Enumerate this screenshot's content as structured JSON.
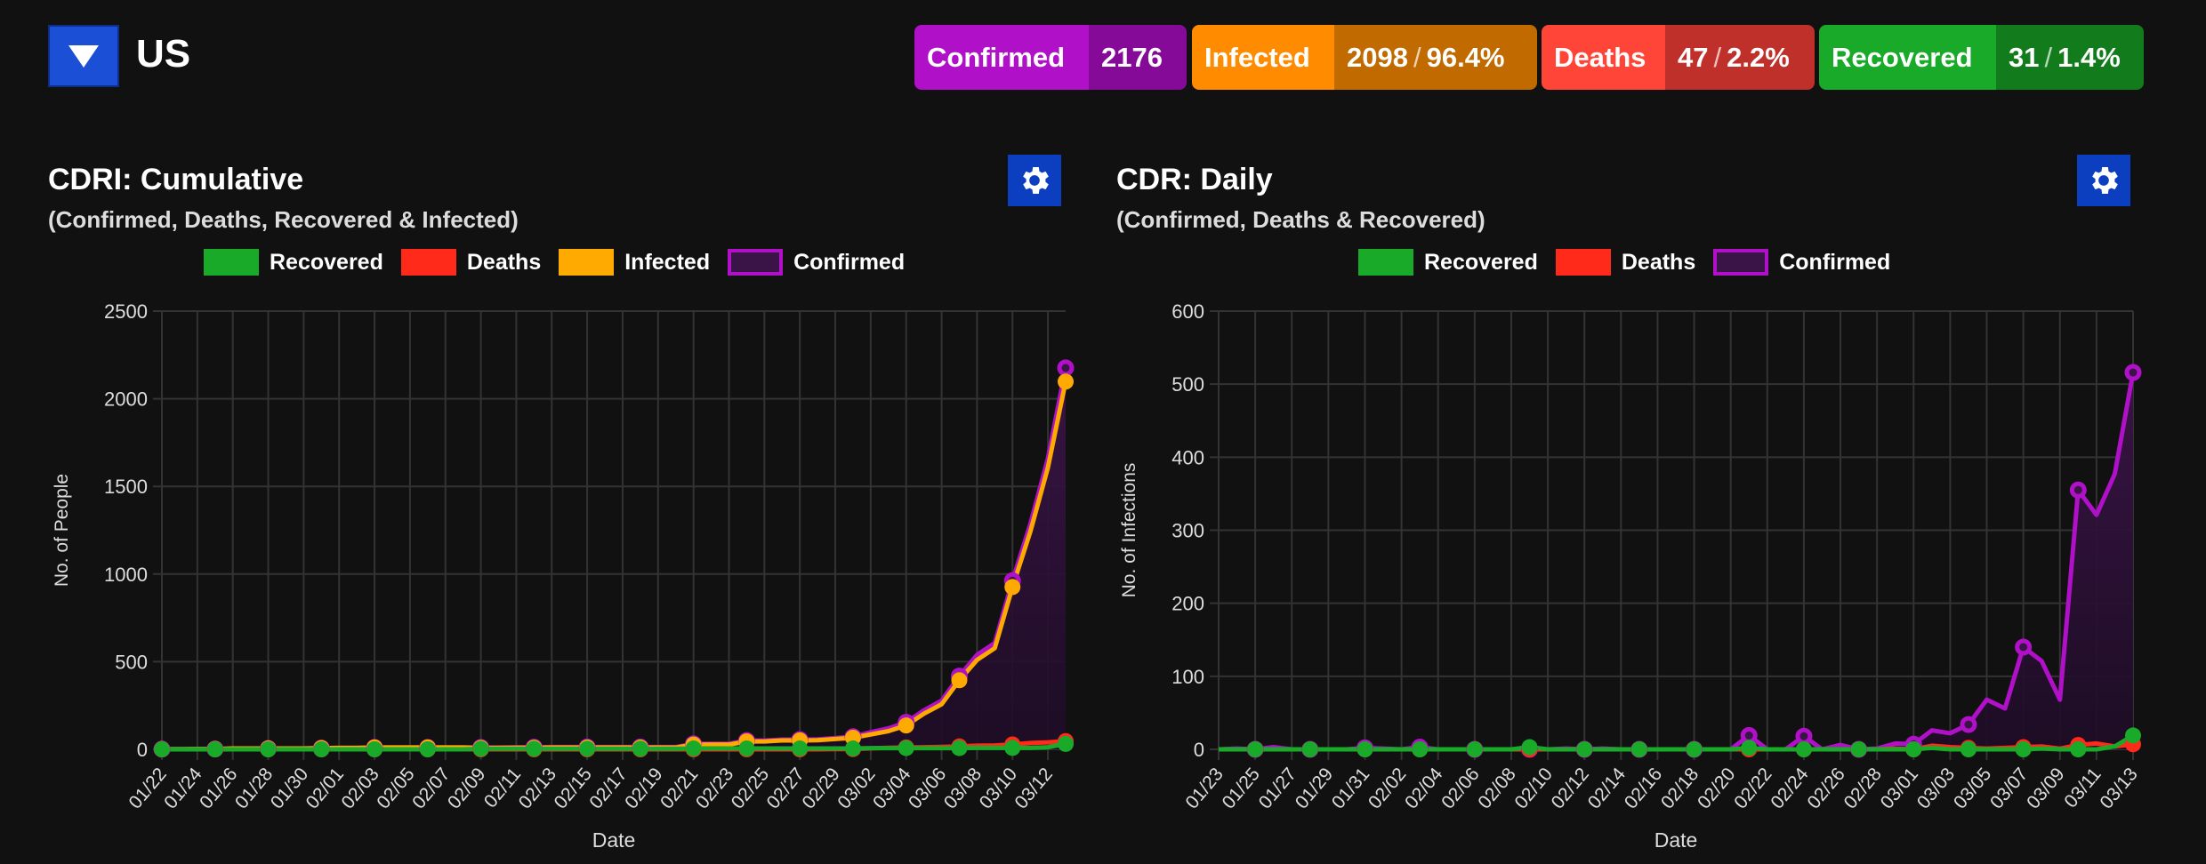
{
  "header": {
    "country": "US",
    "dropdown_icon": "triangle-down-icon"
  },
  "badges": [
    {
      "label": "Confirmed",
      "value": "2176",
      "pct": "",
      "color": "#b010c8",
      "dark": "#850a98"
    },
    {
      "label": "Infected",
      "value": "2098",
      "pct": "96.4%",
      "color": "#ff8c00",
      "dark": "#c06a00"
    },
    {
      "label": "Deaths",
      "value": "47",
      "pct": "2.2%",
      "color": "#ff4538",
      "dark": "#c0302a"
    },
    {
      "label": "Recovered",
      "value": "31",
      "pct": "1.4%",
      "color": "#18aa28",
      "dark": "#127c1c"
    }
  ],
  "slash": "/",
  "colors": {
    "confirmed": "#b010c8",
    "infected": "#ffaa00",
    "deaths": "#ff2a1a",
    "recovered": "#18aa28",
    "grid": "#333333",
    "gear_button": "#0c3fbf"
  },
  "panels": [
    {
      "title": "CDRI: Cumulative",
      "subtitle": "(Confirmed, Deaths, Recovered & Infected)",
      "settings_icon": "gear-icon"
    },
    {
      "title": "CDR: Daily",
      "subtitle": "(Confirmed, Deaths & Recovered)",
      "settings_icon": "gear-icon"
    }
  ],
  "chart_data": [
    {
      "type": "line",
      "title": "CDRI: Cumulative",
      "xlabel": "Date",
      "ylabel": "No. of People",
      "ylim": [
        0,
        2500
      ],
      "yticks": [
        0,
        500,
        1000,
        1500,
        2000,
        2500
      ],
      "grid": true,
      "legend": "top",
      "legend_items": [
        "Recovered",
        "Deaths",
        "Infected",
        "Confirmed"
      ],
      "x": [
        "01/22",
        "01/23",
        "01/24",
        "01/25",
        "01/26",
        "01/27",
        "01/28",
        "01/29",
        "01/30",
        "01/31",
        "02/01",
        "02/02",
        "02/03",
        "02/04",
        "02/05",
        "02/06",
        "02/07",
        "02/08",
        "02/09",
        "02/10",
        "02/11",
        "02/12",
        "02/13",
        "02/14",
        "02/15",
        "02/16",
        "02/17",
        "02/18",
        "02/19",
        "02/20",
        "02/21",
        "02/22",
        "02/23",
        "02/24",
        "02/25",
        "02/26",
        "02/27",
        "02/28",
        "02/29",
        "03/01",
        "03/02",
        "03/03",
        "03/04",
        "03/05",
        "03/06",
        "03/07",
        "03/08",
        "03/09",
        "03/10",
        "03/11",
        "03/12",
        "03/13"
      ],
      "series": [
        {
          "name": "Confirmed",
          "color": "#b010c8",
          "fill": true,
          "values": [
            1,
            1,
            2,
            2,
            5,
            5,
            5,
            5,
            5,
            7,
            8,
            8,
            11,
            11,
            11,
            11,
            11,
            11,
            11,
            11,
            12,
            12,
            13,
            13,
            13,
            13,
            13,
            13,
            13,
            13,
            32,
            32,
            32,
            50,
            50,
            56,
            56,
            57,
            65,
            72,
            98,
            120,
            154,
            222,
            278,
            418,
            539,
            607,
            962,
            1283,
            1660,
            2176
          ]
        },
        {
          "name": "Infected",
          "color": "#ffaa00",
          "values": [
            1,
            1,
            2,
            2,
            5,
            5,
            5,
            5,
            5,
            7,
            8,
            8,
            11,
            11,
            11,
            11,
            11,
            11,
            8,
            8,
            9,
            9,
            10,
            10,
            10,
            10,
            10,
            10,
            10,
            10,
            27,
            27,
            27,
            45,
            45,
            51,
            51,
            52,
            59,
            66,
            85,
            104,
            136,
            203,
            257,
            394,
            510,
            577,
            926,
            1239,
            1608,
            2098
          ]
        },
        {
          "name": "Deaths",
          "color": "#ff2a1a",
          "values": [
            0,
            0,
            0,
            0,
            0,
            0,
            0,
            0,
            0,
            0,
            0,
            0,
            0,
            0,
            0,
            0,
            0,
            0,
            0,
            0,
            0,
            0,
            0,
            0,
            0,
            0,
            0,
            0,
            0,
            0,
            0,
            0,
            0,
            0,
            0,
            0,
            0,
            0,
            1,
            1,
            6,
            9,
            11,
            12,
            14,
            17,
            21,
            22,
            28,
            36,
            40,
            47
          ]
        },
        {
          "name": "Recovered",
          "color": "#18aa28",
          "values": [
            0,
            0,
            0,
            0,
            0,
            0,
            0,
            0,
            0,
            0,
            0,
            0,
            0,
            0,
            0,
            0,
            0,
            0,
            3,
            3,
            3,
            3,
            3,
            3,
            3,
            3,
            3,
            3,
            3,
            3,
            5,
            5,
            5,
            5,
            5,
            5,
            5,
            5,
            5,
            5,
            7,
            7,
            7,
            7,
            7,
            7,
            8,
            8,
            8,
            8,
            12,
            31
          ]
        }
      ]
    },
    {
      "type": "line",
      "title": "CDR: Daily",
      "xlabel": "Date",
      "ylabel": "No. of Infections",
      "ylim": [
        0,
        600
      ],
      "yticks": [
        0,
        100,
        200,
        300,
        400,
        500,
        600
      ],
      "grid": true,
      "legend": "top",
      "legend_items": [
        "Recovered",
        "Deaths",
        "Confirmed"
      ],
      "x": [
        "01/23",
        "01/24",
        "01/25",
        "01/26",
        "01/27",
        "01/28",
        "01/29",
        "01/30",
        "01/31",
        "02/01",
        "02/02",
        "02/03",
        "02/04",
        "02/05",
        "02/06",
        "02/07",
        "02/08",
        "02/09",
        "02/10",
        "02/11",
        "02/12",
        "02/13",
        "02/14",
        "02/15",
        "02/16",
        "02/17",
        "02/18",
        "02/19",
        "02/20",
        "02/21",
        "02/22",
        "02/23",
        "02/24",
        "02/25",
        "02/26",
        "02/27",
        "02/28",
        "02/29",
        "03/01",
        "03/02",
        "03/03",
        "03/04",
        "03/05",
        "03/06",
        "03/07",
        "03/08",
        "03/09",
        "03/10",
        "03/11",
        "03/12",
        "03/13"
      ],
      "series": [
        {
          "name": "Confirmed",
          "color": "#b010c8",
          "fill": true,
          "values": [
            0,
            1,
            0,
            3,
            0,
            0,
            0,
            0,
            2,
            1,
            0,
            3,
            0,
            0,
            0,
            0,
            0,
            0,
            0,
            1,
            0,
            1,
            0,
            0,
            0,
            0,
            0,
            0,
            0,
            19,
            0,
            0,
            18,
            0,
            6,
            0,
            1,
            8,
            7,
            26,
            22,
            34,
            68,
            56,
            140,
            121,
            68,
            355,
            321,
            377,
            516
          ]
        },
        {
          "name": "Deaths",
          "color": "#ff2a1a",
          "values": [
            0,
            0,
            0,
            0,
            0,
            0,
            0,
            0,
            0,
            0,
            0,
            0,
            0,
            0,
            0,
            0,
            0,
            0,
            0,
            0,
            0,
            0,
            0,
            0,
            0,
            0,
            0,
            0,
            0,
            0,
            0,
            0,
            0,
            0,
            0,
            0,
            0,
            1,
            0,
            5,
            3,
            2,
            1,
            2,
            3,
            4,
            1,
            6,
            8,
            4,
            7
          ]
        },
        {
          "name": "Recovered",
          "color": "#18aa28",
          "values": [
            0,
            0,
            0,
            0,
            0,
            0,
            0,
            0,
            0,
            0,
            0,
            0,
            0,
            0,
            0,
            0,
            0,
            3,
            0,
            0,
            0,
            0,
            0,
            0,
            0,
            0,
            0,
            0,
            0,
            2,
            0,
            0,
            0,
            0,
            0,
            0,
            0,
            0,
            0,
            2,
            0,
            0,
            0,
            0,
            0,
            1,
            0,
            0,
            0,
            4,
            19
          ]
        }
      ]
    }
  ]
}
